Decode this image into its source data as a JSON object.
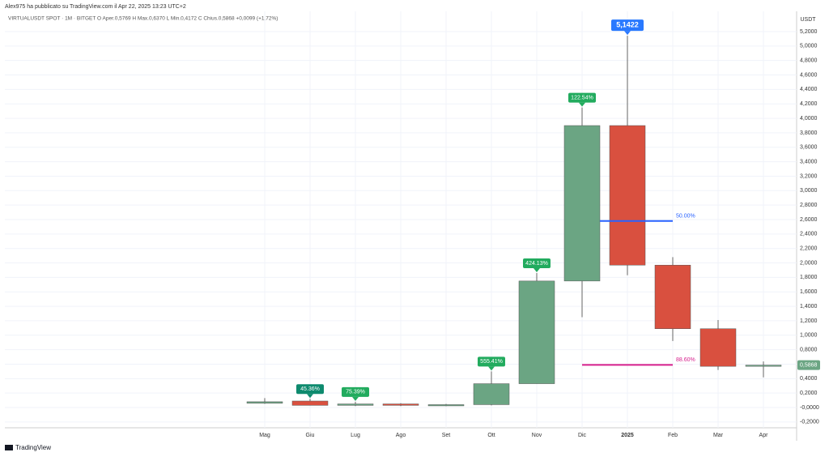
{
  "header": {
    "publisher": "Alex975 ha pubblicato su TradingView.com il Apr 22, 2025 13:23 UTC+2",
    "legend": "VIRTUALUSDT SPOT · 1M · BITGET  O  Aper.0,5769  H  Max.0,6370  L  Min.0,4172  C  Chius.0,5868  +0,0099 (+1,72%)"
  },
  "footer": {
    "brand": "TradingView"
  },
  "chart_data": {
    "type": "candlestick",
    "y_axis_label": "USDT",
    "categories": [
      "Mag",
      "Giu",
      "Lug",
      "Ago",
      "Set",
      "Ott",
      "Nov",
      "Dic",
      "2025",
      "Feb",
      "Mar",
      "Apr"
    ],
    "open": [
      0.06,
      0.09,
      0.03,
      0.05,
      0.03,
      0.04,
      0.33,
      1.75,
      3.9,
      1.97,
      1.09,
      0.5769
    ],
    "high": [
      0.13,
      0.12,
      0.08,
      0.06,
      0.05,
      0.5,
      1.86,
      4.15,
      5.1422,
      2.08,
      1.21,
      0.637
    ],
    "low": [
      0.05,
      0.03,
      0.02,
      0.02,
      0.02,
      0.03,
      0.33,
      1.25,
      1.83,
      0.92,
      0.52,
      0.4172
    ],
    "close": [
      0.08,
      0.03,
      0.05,
      0.03,
      0.04,
      0.33,
      1.75,
      3.9,
      1.97,
      1.09,
      0.57,
      0.5868
    ],
    "up_color": "#6ba583",
    "down_color": "#d9503f",
    "ylim": [
      -0.28,
      5.48
    ],
    "yticks": [
      {
        "value": -0.2,
        "label": "-0,2000"
      },
      {
        "value": 0,
        "label": "-0,0000"
      },
      {
        "value": 0.2,
        "label": "0,2000"
      },
      {
        "value": 0.4,
        "label": "0,4000"
      },
      {
        "value": 0.6,
        "label": "0,6000"
      },
      {
        "value": 0.8,
        "label": "0,8000"
      },
      {
        "value": 1.0,
        "label": "1,0000"
      },
      {
        "value": 1.2,
        "label": "1,2000"
      },
      {
        "value": 1.4,
        "label": "1,4000"
      },
      {
        "value": 1.6,
        "label": "1,6000"
      },
      {
        "value": 1.8,
        "label": "1,8000"
      },
      {
        "value": 2.0,
        "label": "2,0000"
      },
      {
        "value": 2.2,
        "label": "2,2000"
      },
      {
        "value": 2.4,
        "label": "2,4000"
      },
      {
        "value": 2.6,
        "label": "2,6000"
      },
      {
        "value": 2.8,
        "label": "2,8000"
      },
      {
        "value": 3.0,
        "label": "3,0000"
      },
      {
        "value": 3.2,
        "label": "3,2000"
      },
      {
        "value": 3.4,
        "label": "3,4000"
      },
      {
        "value": 3.6,
        "label": "3,6000"
      },
      {
        "value": 3.8,
        "label": "3,8000"
      },
      {
        "value": 4.0,
        "label": "4,0000"
      },
      {
        "value": 4.2,
        "label": "4,2000"
      },
      {
        "value": 4.4,
        "label": "4,4000"
      },
      {
        "value": 4.6,
        "label": "4,6000"
      },
      {
        "value": 4.8,
        "label": "4,8000"
      },
      {
        "value": 5.0,
        "label": "5,0000"
      },
      {
        "value": 5.2,
        "label": "5,2000"
      }
    ],
    "grid": true,
    "annotations": [
      {
        "text": "45.36%",
        "category": 1,
        "color": "#0e8a6e"
      },
      {
        "text": "75.39%",
        "category": 2,
        "color": "#22ab5e"
      },
      {
        "text": "555.41%",
        "category": 5,
        "color": "#22ab5e"
      },
      {
        "text": "424.13%",
        "category": 6,
        "color": "#22ab5e"
      },
      {
        "text": "122.54%",
        "category": 7,
        "color": "#22ab5e"
      },
      {
        "text": "5,1422",
        "category": 8,
        "color": "#2979ff"
      }
    ],
    "levels": [
      {
        "label": "50.00%",
        "value": 2.58,
        "color": "#2962ff"
      },
      {
        "label": "88.60%",
        "value": 0.59,
        "color": "#d61f8c"
      }
    ],
    "last_price": {
      "value": 0.5868,
      "label": "0,5868"
    }
  }
}
